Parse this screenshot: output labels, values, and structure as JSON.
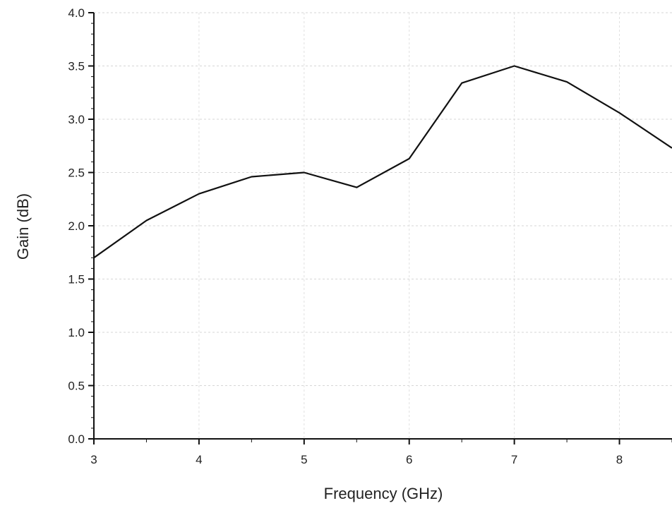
{
  "chart_data": {
    "type": "line",
    "title": "",
    "xlabel": "Frequency (GHz)",
    "ylabel": "Gain (dB)",
    "xlim": [
      3,
      8.5
    ],
    "ylim": [
      0.0,
      4.0
    ],
    "xticks": [
      3,
      4,
      5,
      6,
      7,
      8
    ],
    "yticks": [
      0.0,
      0.5,
      1.0,
      1.5,
      2.0,
      2.5,
      3.0,
      3.5,
      4.0
    ],
    "grid": true,
    "legend": "none",
    "series": [
      {
        "color": "#111111",
        "x": [
          3,
          3.5,
          4,
          4.5,
          5,
          5.5,
          6,
          6.5,
          7,
          7.5,
          8,
          8.5
        ],
        "y": [
          1.7,
          2.05,
          2.3,
          2.46,
          2.5,
          2.36,
          2.63,
          3.34,
          3.5,
          3.35,
          3.06,
          2.73
        ]
      }
    ]
  }
}
